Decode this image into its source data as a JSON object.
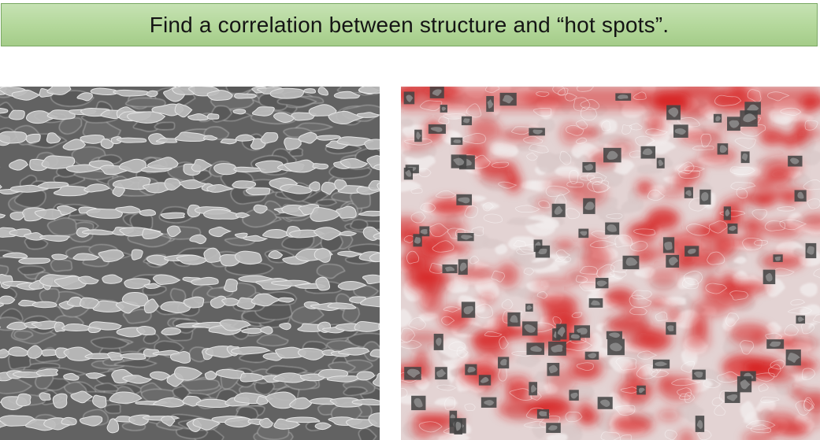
{
  "slide": {
    "title": "Find a correlation between structure and “hot spots”."
  },
  "images": {
    "left": {
      "kind": "micrograph",
      "colors": {
        "matrix": "#6b6b6b",
        "particles": "#c8c8c8",
        "edges": "#e6e6e6"
      }
    },
    "right": {
      "kind": "micrograph-heatmap-overlay",
      "colors": {
        "base": "#e8dada",
        "hot": "#d71e1e",
        "masked": "#444444"
      }
    }
  }
}
